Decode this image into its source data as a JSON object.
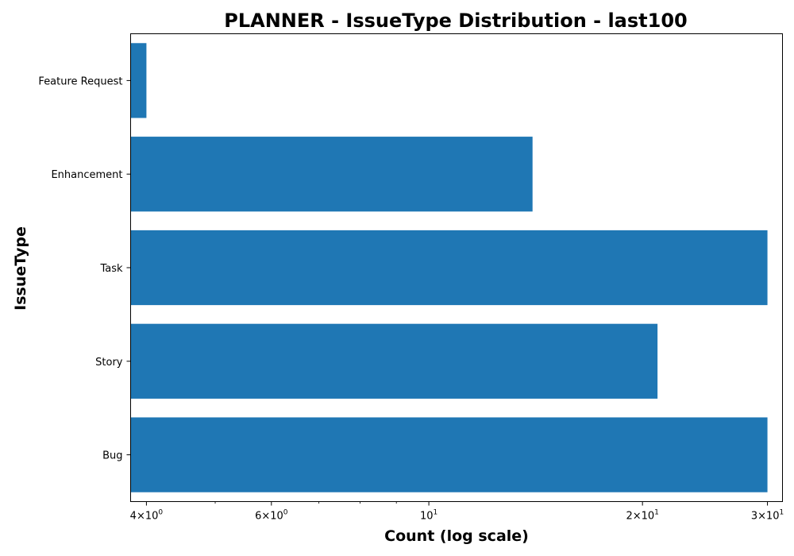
{
  "chart_data": {
    "type": "bar",
    "orientation": "horizontal",
    "title": "PLANNER - IssueType Distribution - last100",
    "xlabel": "Count (log scale)",
    "ylabel": "IssueType",
    "x_scale": "log",
    "xlim": [
      3.8,
      31.5
    ],
    "categories": [
      "Bug",
      "Story",
      "Task",
      "Enhancement",
      "Feature Request"
    ],
    "values": [
      30,
      21,
      30,
      14,
      4
    ],
    "bar_color": "#1f77b4",
    "x_ticks": [
      {
        "value": 4,
        "base": "4",
        "exp": "0"
      },
      {
        "value": 6,
        "base": "6",
        "exp": "0"
      },
      {
        "value": 10,
        "base": "",
        "exp": "1"
      },
      {
        "value": 20,
        "base": "2",
        "exp": "1"
      },
      {
        "value": 30,
        "base": "3",
        "exp": "1"
      }
    ],
    "grid": false,
    "legend": "none"
  }
}
